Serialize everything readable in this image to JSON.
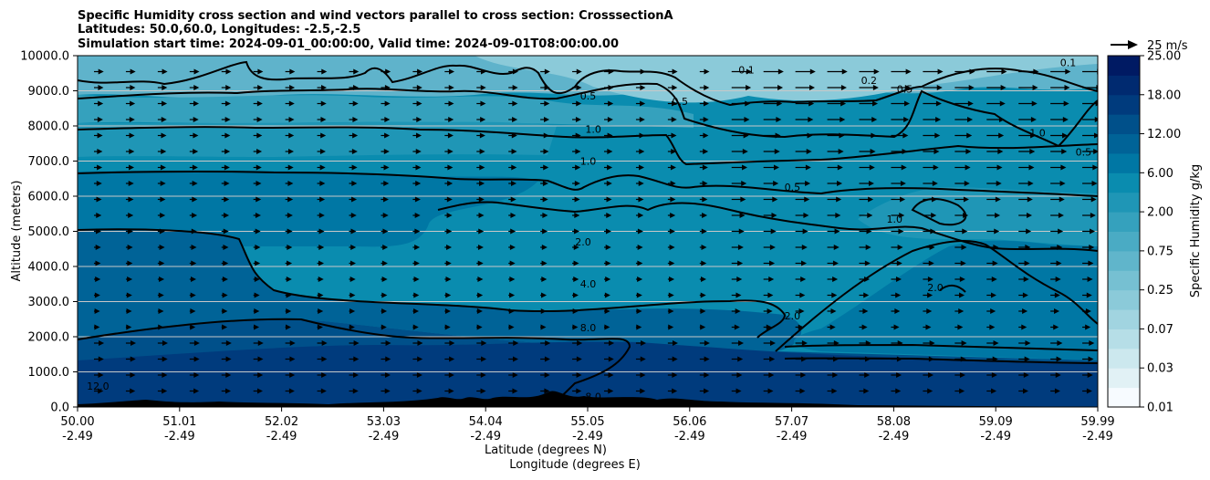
{
  "chart_data": {
    "type": "contourf",
    "title_lines": [
      "Specific Humidity cross section and wind vectors parallel to cross section: CrosssectionA",
      "Latitudes: 50.0,60.0, Longitudes: -2.5,-2.5",
      "Simulation start time: 2024-09-01_00:00:00, Valid time: 2024-09-01T08:00:00.00"
    ],
    "xlabel_lines": [
      "Latitude (degrees N)",
      "Longitude (degrees E)"
    ],
    "ylabel": "Altitude (meters)",
    "x_range": [
      50.0,
      59.99
    ],
    "ylim": [
      0,
      10000
    ],
    "x_ticks": [
      {
        "lat": "50.00",
        "lon": "-2.49"
      },
      {
        "lat": "51.01",
        "lon": "-2.49"
      },
      {
        "lat": "52.02",
        "lon": "-2.49"
      },
      {
        "lat": "53.03",
        "lon": "-2.49"
      },
      {
        "lat": "54.04",
        "lon": "-2.49"
      },
      {
        "lat": "55.05",
        "lon": "-2.49"
      },
      {
        "lat": "56.06",
        "lon": "-2.49"
      },
      {
        "lat": "57.07",
        "lon": "-2.49"
      },
      {
        "lat": "58.08",
        "lon": "-2.49"
      },
      {
        "lat": "59.09",
        "lon": "-2.49"
      },
      {
        "lat": "59.99",
        "lon": "-2.49"
      }
    ],
    "y_ticks": [
      0,
      1000,
      2000,
      3000,
      4000,
      5000,
      6000,
      7000,
      8000,
      9000,
      10000
    ],
    "y_tick_labels": [
      "0.0",
      "1000.0",
      "2000.0",
      "3000.0",
      "4000.0",
      "5000.0",
      "6000.0",
      "7000.0",
      "8000.0",
      "9000.0",
      "10000.0"
    ],
    "grid": "horizontal",
    "colorbar": {
      "label": "Specific Humidity g/kg",
      "tick_labels": [
        "0.01",
        "0.03",
        "0.07",
        "0.25",
        "0.75",
        "2.00",
        "6.00",
        "12.00",
        "18.00",
        "25.00"
      ],
      "levels": [
        0.01,
        0.02,
        0.03,
        0.05,
        0.07,
        0.1,
        0.25,
        0.5,
        0.75,
        1.0,
        2.0,
        4.0,
        6.0,
        8.0,
        12.0,
        15.0,
        18.0,
        20.0,
        25.0
      ],
      "colors": [
        "#f7fbff",
        "#e1f1f5",
        "#cce8ee",
        "#b6dee7",
        "#a1d4e0",
        "#8bcad9",
        "#76c0d2",
        "#60b5cb",
        "#4aabc4",
        "#35a1bd",
        "#1f96b6",
        "#0a8caf",
        "#0077a4",
        "#006397",
        "#00508a",
        "#003b7d",
        "#002a70",
        "#001a63",
        "#080a56"
      ]
    },
    "quiver_key_label": "25 m/s",
    "contour_labels": [
      {
        "text": "0.1",
        "x": 56.55,
        "y": 9500
      },
      {
        "text": "0.1",
        "x": 59.7,
        "y": 9700
      },
      {
        "text": "0.2",
        "x": 57.75,
        "y": 9200
      },
      {
        "text": "0.5",
        "x": 55.0,
        "y": 8750
      },
      {
        "text": "0.5",
        "x": 55.9,
        "y": 8600
      },
      {
        "text": "0.5",
        "x": 58.1,
        "y": 8950
      },
      {
        "text": "0.5",
        "x": 59.85,
        "y": 7150
      },
      {
        "text": "0.5",
        "x": 57.0,
        "y": 6150
      },
      {
        "text": "1.0",
        "x": 55.05,
        "y": 7800
      },
      {
        "text": "1.0",
        "x": 55.0,
        "y": 6900
      },
      {
        "text": "1.0",
        "x": 59.4,
        "y": 7700
      },
      {
        "text": "1.0",
        "x": 58.0,
        "y": 5250
      },
      {
        "text": "2.0",
        "x": 54.95,
        "y": 4600
      },
      {
        "text": "2.0",
        "x": 57.0,
        "y": 2500
      },
      {
        "text": "2.0",
        "x": 58.4,
        "y": 3300
      },
      {
        "text": "4.0",
        "x": 55.0,
        "y": 3400
      },
      {
        "text": "8.0",
        "x": 55.0,
        "y": 2150
      },
      {
        "text": "12.0",
        "x": 50.2,
        "y": 500
      },
      {
        "text": "8.0",
        "x": 55.05,
        "y": 200
      }
    ]
  }
}
